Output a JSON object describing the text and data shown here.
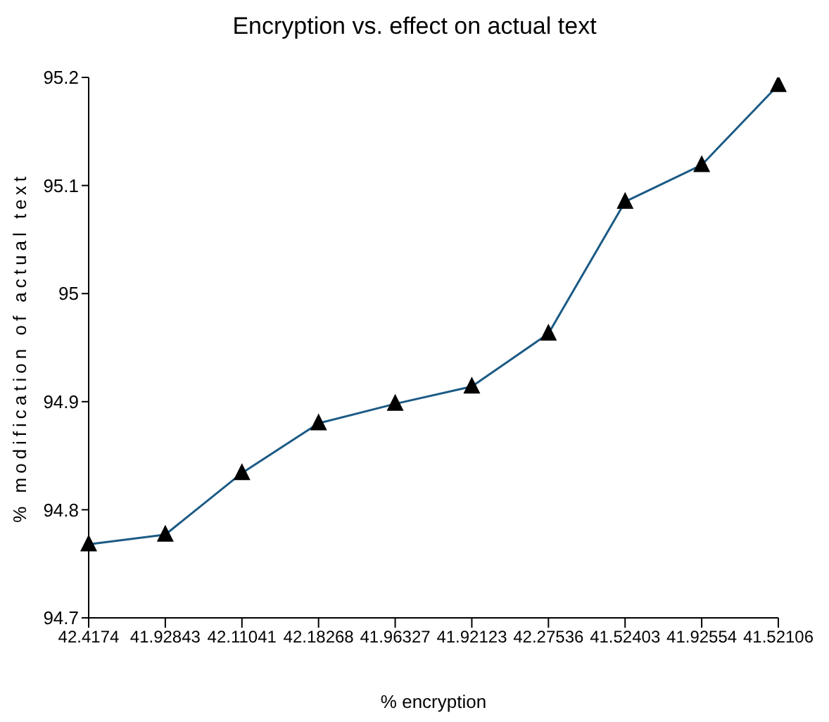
{
  "chart_data": {
    "type": "line",
    "title": "Encryption vs. effect on actual text",
    "xlabel": "% encryption",
    "ylabel": "% modification of actual text",
    "categories": [
      "42.4174",
      "41.92843",
      "42.11041",
      "42.18268",
      "41.96327",
      "41.92123",
      "42.27536",
      "41.52403",
      "41.92554",
      "41.52106"
    ],
    "series": [
      {
        "color": "#1b5a85",
        "values": [
          94.768,
          94.777,
          94.834,
          94.88,
          94.898,
          94.914,
          94.963,
          95.085,
          95.119,
          95.193
        ]
      }
    ],
    "ylim": [
      94.7,
      95.2
    ],
    "yticks": [
      94.7,
      94.8,
      94.9,
      95,
      95.1,
      95.2
    ],
    "grid": false,
    "marker": "triangle",
    "line_style": "solid"
  }
}
